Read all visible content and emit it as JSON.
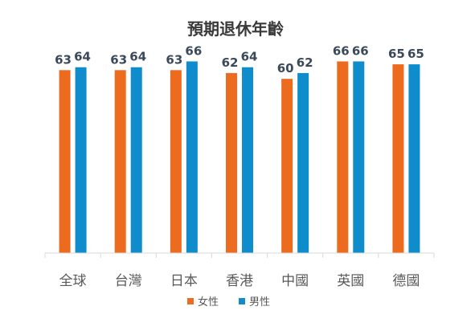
{
  "chart_data": {
    "type": "bar",
    "title": "預期退休年齡",
    "categories": [
      "全球",
      "台灣",
      "日本",
      "香港",
      "中國",
      "英國",
      "德國"
    ],
    "series": [
      {
        "name": "女性",
        "color": "#ED6B1E",
        "values": [
          63,
          63,
          63,
          62,
          60,
          66,
          65
        ]
      },
      {
        "name": "男性",
        "color": "#0E8CCB",
        "values": [
          64,
          64,
          66,
          64,
          62,
          66,
          65
        ]
      }
    ],
    "ylim": [
      0,
      70
    ],
    "legend_position": "bottom",
    "grid": false,
    "data_labels": true
  }
}
